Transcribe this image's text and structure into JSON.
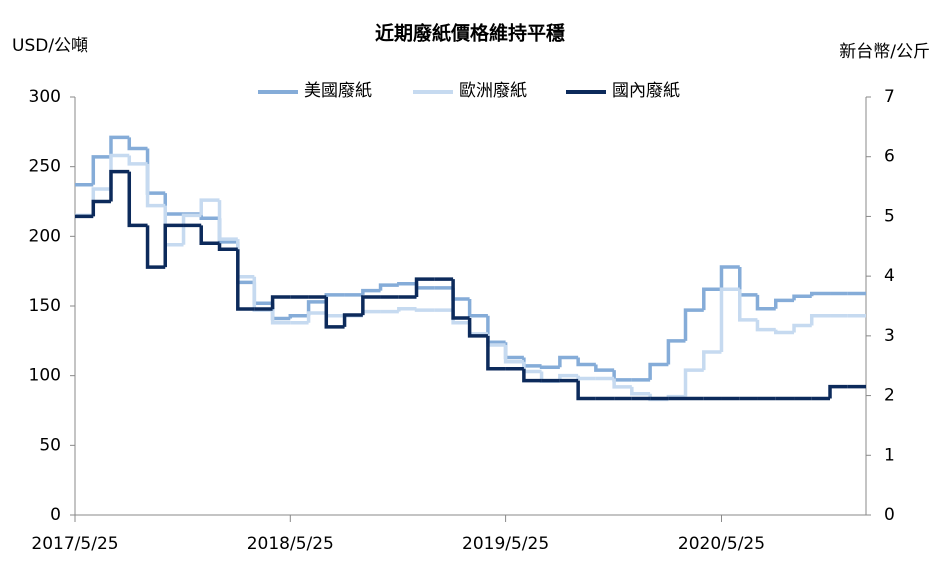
{
  "chart_data": {
    "type": "step-line",
    "title": "近期廢紙價格維持平穩",
    "y_label": "USD/公噸",
    "y2_label": "新台幣/公斤",
    "x": [
      "2017/5/25",
      "2017/6/25",
      "2017/7/25",
      "2017/8/25",
      "2017/9/25",
      "2017/10/25",
      "2017/11/25",
      "2017/12/25",
      "2018/1/25",
      "2018/2/25",
      "2018/3/25",
      "2018/4/25",
      "2018/5/25",
      "2018/6/25",
      "2018/7/25",
      "2018/8/25",
      "2018/9/25",
      "2018/10/25",
      "2018/11/25",
      "2018/12/25",
      "2019/1/25",
      "2019/2/25",
      "2019/3/25",
      "2019/4/25",
      "2019/5/25",
      "2019/6/25",
      "2019/7/25",
      "2019/8/25",
      "2019/9/25",
      "2019/10/25",
      "2019/11/25",
      "2019/12/25",
      "2020/1/25",
      "2020/2/25",
      "2020/3/25",
      "2020/4/25",
      "2020/5/25",
      "2020/6/25",
      "2020/7/25",
      "2020/8/25",
      "2020/9/25",
      "2020/10/25",
      "2020/11/25",
      "2020/12/25"
    ],
    "xlim": [
      "2017/5/25",
      "2021/1/25"
    ],
    "xticks": [
      "2017/5/25",
      "2018/5/25",
      "2019/5/25",
      "2020/5/25"
    ],
    "ylim": [
      0,
      300
    ],
    "yticks": [
      0,
      50,
      100,
      150,
      200,
      250,
      300
    ],
    "y2lim": [
      0,
      7
    ],
    "y2ticks": [
      0,
      1,
      2,
      3,
      4,
      5,
      6,
      7
    ],
    "legend": "top",
    "series": [
      {
        "name": "美國廢紙",
        "color": "#85acd8",
        "values": [
          237,
          257,
          271,
          263,
          231,
          216,
          216,
          213,
          196,
          167,
          152,
          141,
          143,
          153,
          158,
          158,
          161,
          165,
          166,
          163,
          163,
          155,
          143,
          124,
          113,
          107,
          106,
          113,
          108,
          104,
          97,
          97,
          108,
          125,
          147,
          162,
          178,
          158,
          148,
          154,
          157,
          159,
          159,
          159
        ]
      },
      {
        "name": "歐洲廢紙",
        "color": "#c6daf0",
        "values": [
          215,
          234,
          258,
          252,
          222,
          194,
          215,
          226,
          198,
          171,
          147,
          138,
          138,
          145,
          143,
          143,
          146,
          146,
          148,
          147,
          147,
          138,
          130,
          122,
          110,
          103,
          96,
          100,
          98,
          98,
          92,
          87,
          83,
          85,
          104,
          117,
          162,
          140,
          133,
          131,
          136,
          143,
          143,
          143
        ]
      },
      {
        "name": "國內廢紙",
        "color": "#0c2a5b",
        "axis": "y2",
        "values": [
          5.0,
          5.25,
          5.75,
          4.85,
          4.15,
          4.85,
          4.85,
          4.55,
          4.45,
          3.45,
          3.45,
          3.65,
          3.65,
          3.65,
          3.15,
          3.35,
          3.65,
          3.65,
          3.65,
          3.95,
          3.95,
          3.3,
          3.0,
          2.45,
          2.45,
          2.25,
          2.25,
          2.25,
          1.95,
          1.95,
          1.95,
          1.95,
          1.95,
          1.95,
          1.95,
          1.95,
          1.95,
          1.95,
          1.95,
          1.95,
          1.95,
          1.95,
          2.15,
          2.15
        ]
      }
    ]
  }
}
